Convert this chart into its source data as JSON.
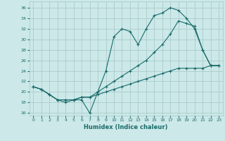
{
  "xlabel": "Humidex (Indice chaleur)",
  "background_color": "#cce8e8",
  "grid_color": "#aacccc",
  "line_color": "#1a6b6b",
  "xlim": [
    -0.5,
    23.5
  ],
  "ylim": [
    15.5,
    37.2
  ],
  "xticks": [
    0,
    1,
    2,
    3,
    4,
    5,
    6,
    7,
    8,
    9,
    10,
    11,
    12,
    13,
    14,
    15,
    16,
    17,
    18,
    19,
    20,
    21,
    22,
    23
  ],
  "yticks": [
    16,
    18,
    20,
    22,
    24,
    26,
    28,
    30,
    32,
    34,
    36
  ],
  "line1_x": [
    0,
    1,
    2,
    3,
    4,
    5,
    6,
    7,
    8,
    9,
    10,
    11,
    12,
    13,
    14,
    15,
    16,
    17,
    18,
    19,
    20,
    21,
    22,
    23
  ],
  "line1_y": [
    21,
    20.5,
    19.5,
    18.5,
    18,
    18.5,
    18.5,
    16,
    20.0,
    24.0,
    30.5,
    32.0,
    31.5,
    29.0,
    32.0,
    34.5,
    35.0,
    36.0,
    35.5,
    34.0,
    32.0,
    28.0,
    25.0,
    25.0
  ],
  "line2_x": [
    0,
    1,
    2,
    3,
    4,
    5,
    6,
    7,
    8,
    9,
    10,
    11,
    12,
    13,
    14,
    15,
    16,
    17,
    18,
    19,
    20,
    21,
    22,
    23
  ],
  "line2_y": [
    21,
    20.5,
    19.5,
    18.5,
    18.5,
    18.5,
    19.0,
    19.0,
    20.0,
    21.0,
    22.0,
    23.0,
    24.0,
    25.0,
    26.0,
    27.5,
    29.0,
    31.0,
    33.5,
    33.0,
    32.5,
    28.0,
    25.0,
    25.0
  ],
  "line3_x": [
    0,
    1,
    2,
    3,
    4,
    5,
    6,
    7,
    8,
    9,
    10,
    11,
    12,
    13,
    14,
    15,
    16,
    17,
    18,
    19,
    20,
    21,
    22,
    23
  ],
  "line3_y": [
    21,
    20.5,
    19.5,
    18.5,
    18.5,
    18.5,
    19.0,
    19.0,
    19.5,
    20.0,
    20.5,
    21.0,
    21.5,
    22.0,
    22.5,
    23.0,
    23.5,
    24.0,
    24.5,
    24.5,
    24.5,
    24.5,
    25.0,
    25.0
  ]
}
